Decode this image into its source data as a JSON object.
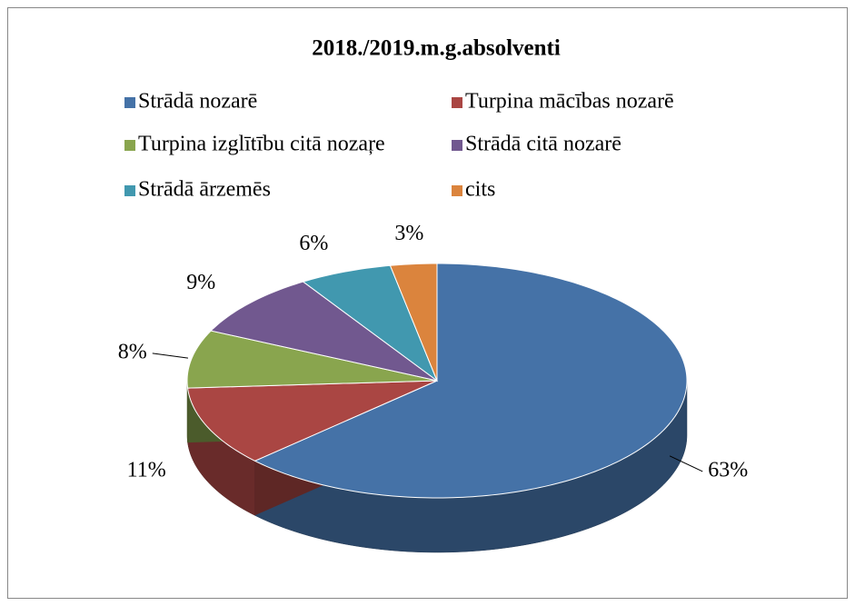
{
  "chart_data": {
    "type": "pie3d",
    "title": "2018./2019.m.g.absolventi",
    "categories": [
      "Strādā nozarē",
      "Turpina mācības nozarē",
      "Turpina izglītību citā nozaŗe",
      "Strādā citā nozarē",
      "Strādā ārzemēs",
      "cits"
    ],
    "values": [
      63,
      11,
      8,
      9,
      6,
      3
    ],
    "value_labels": [
      "63%",
      "11%",
      "8%",
      "9%",
      "6%",
      "3%"
    ],
    "colors": [
      "#4572a7",
      "#aa4643",
      "#89a54e",
      "#71588f",
      "#4198af",
      "#db843d"
    ],
    "legend": "top"
  }
}
